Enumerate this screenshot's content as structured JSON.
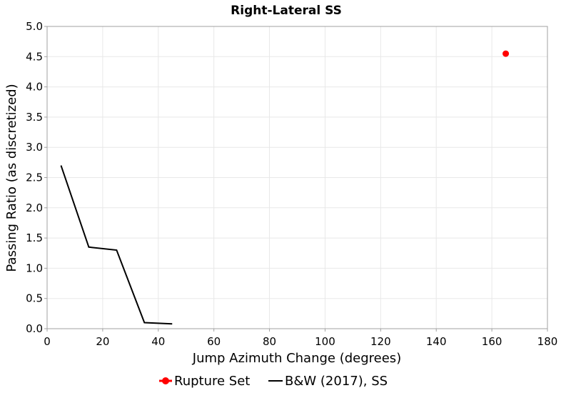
{
  "chart_data": {
    "type": "line",
    "title": "Right-Lateral SS",
    "xlabel": "Jump Azimuth Change (degrees)",
    "ylabel": "Passing Ratio (as discretized)",
    "xlim": [
      0,
      180
    ],
    "ylim": [
      0,
      5
    ],
    "xticks": [
      0,
      20,
      40,
      60,
      80,
      100,
      120,
      140,
      160,
      180
    ],
    "yticks": [
      0.0,
      0.5,
      1.0,
      1.5,
      2.0,
      2.5,
      3.0,
      3.5,
      4.0,
      4.5,
      5.0
    ],
    "xtick_labels": [
      "0",
      "20",
      "40",
      "60",
      "80",
      "100",
      "120",
      "140",
      "160",
      "180"
    ],
    "ytick_labels": [
      "0.0",
      "0.5",
      "1.0",
      "1.5",
      "2.0",
      "2.5",
      "3.0",
      "3.5",
      "4.0",
      "4.5",
      "5.0"
    ],
    "grid": true,
    "series": [
      {
        "name": "B&W (2017), SS",
        "kind": "line",
        "color": "#000000",
        "x": [
          5,
          15,
          25,
          35,
          45
        ],
        "y": [
          2.7,
          1.35,
          1.3,
          0.1,
          0.08
        ]
      },
      {
        "name": "Rupture Set",
        "kind": "scatter",
        "color": "#ff0000",
        "x": [
          165
        ],
        "y": [
          4.55
        ]
      }
    ],
    "legend": {
      "position": "bottom",
      "entries": [
        {
          "label": "Rupture Set",
          "color": "#ff0000",
          "marker": "circle"
        },
        {
          "label": "B&W (2017), SS",
          "color": "#000000",
          "marker": "line"
        }
      ]
    }
  }
}
